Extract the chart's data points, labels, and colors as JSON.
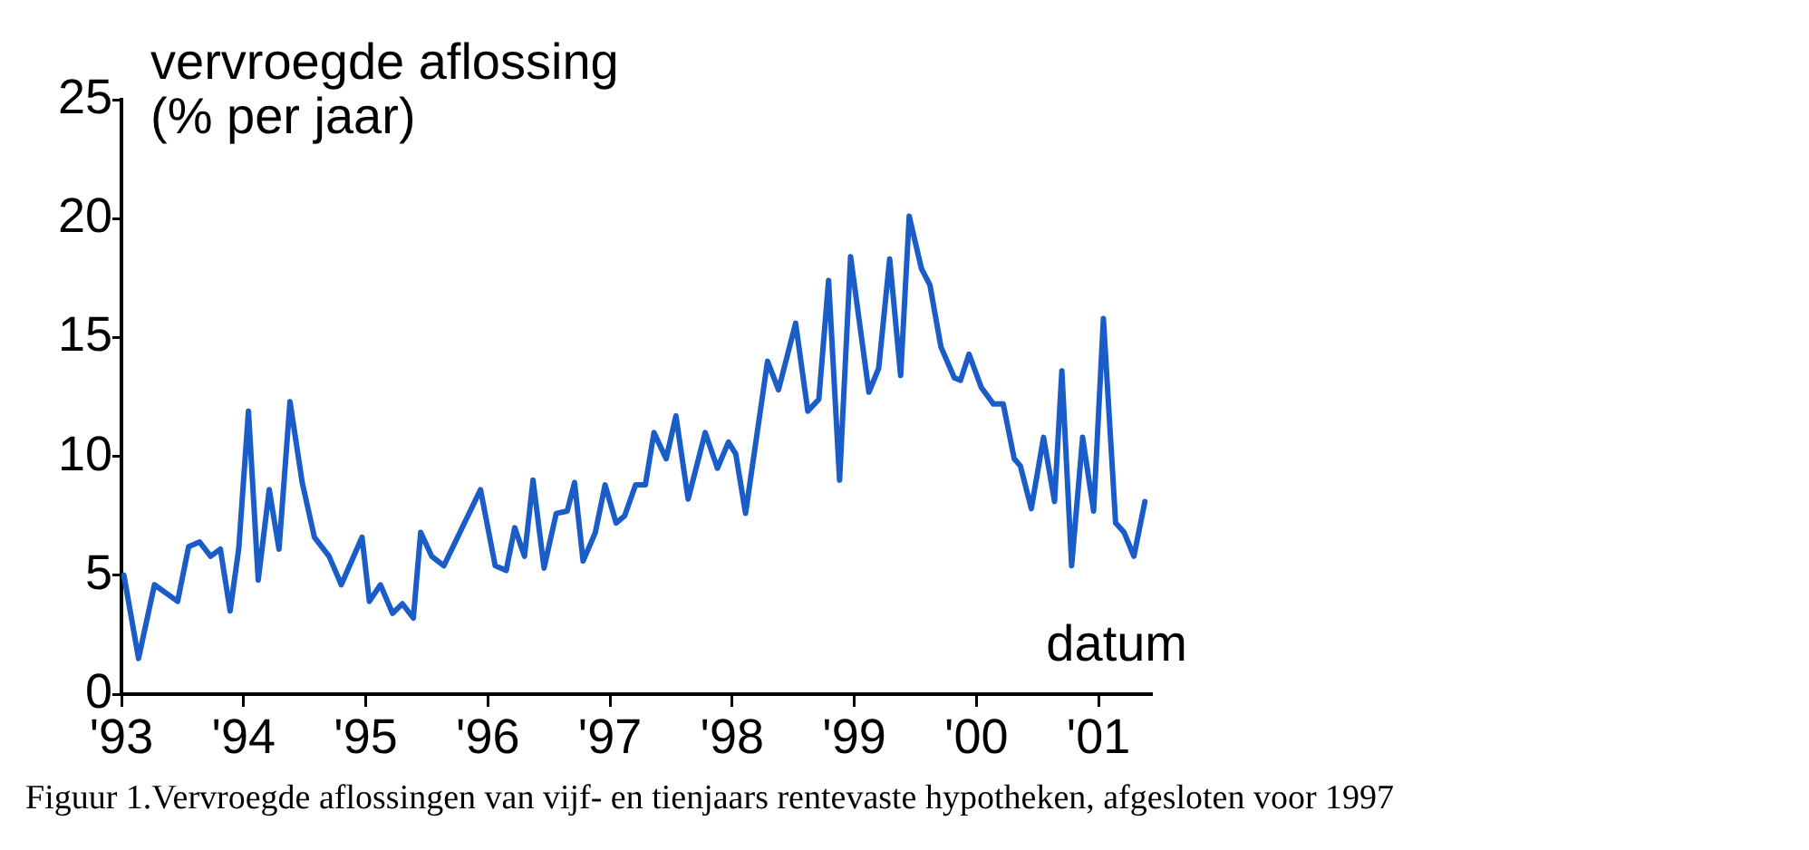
{
  "chart_data": {
    "type": "line",
    "ylabel": "vervroegde aflossing\n(% per jaar)",
    "xlabel": "datum",
    "annotations": [
      "Figuur 1.Vervroegde aflossingen van vijf- en tienjaars rentevaste hypotheken, afgesloten voor 1997"
    ],
    "xlim": [
      1993,
      2001.43
    ],
    "xticks": [
      {
        "value": 1993,
        "label": "'93"
      },
      {
        "value": 1994,
        "label": "'94"
      },
      {
        "value": 1995,
        "label": "'95"
      },
      {
        "value": 1996,
        "label": "'96"
      },
      {
        "value": 1997,
        "label": "'97"
      },
      {
        "value": 1998,
        "label": "'98"
      },
      {
        "value": 1999,
        "label": "'99"
      },
      {
        "value": 2000,
        "label": "'00"
      },
      {
        "value": 2001,
        "label": "'01"
      }
    ],
    "ylim": [
      0,
      25
    ],
    "yticks": [
      0,
      5,
      10,
      15,
      20,
      25
    ],
    "grid": false,
    "legend": false,
    "marker": "none",
    "line_style": "solid",
    "series": [
      {
        "color": "#1a5cc8",
        "x": [
          1993.02,
          1993.14,
          1993.27,
          1993.46,
          1993.55,
          1993.64,
          1993.73,
          1993.81,
          1993.89,
          1993.96,
          1994.04,
          1994.12,
          1994.21,
          1994.29,
          1994.38,
          1994.48,
          1994.58,
          1994.7,
          1994.8,
          1994.97,
          1995.03,
          1995.12,
          1995.22,
          1995.3,
          1995.39,
          1995.45,
          1995.54,
          1995.64,
          1995.94,
          1996.06,
          1996.15,
          1996.22,
          1996.3,
          1996.37,
          1996.46,
          1996.56,
          1996.65,
          1996.71,
          1996.78,
          1996.88,
          1996.96,
          1997.05,
          1997.12,
          1997.21,
          1997.29,
          1997.36,
          1997.46,
          1997.54,
          1997.64,
          1997.78,
          1997.88,
          1997.97,
          1998.03,
          1998.11,
          1998.29,
          1998.38,
          1998.52,
          1998.62,
          1998.71,
          1998.79,
          1998.88,
          1998.97,
          1999.12,
          1999.2,
          1999.29,
          1999.38,
          1999.45,
          1999.55,
          1999.62,
          1999.71,
          1999.82,
          1999.87,
          1999.94,
          2000.04,
          2000.14,
          2000.22,
          2000.31,
          2000.36,
          2000.45,
          2000.55,
          2000.64,
          2000.7,
          2000.78,
          2000.87,
          2000.96,
          2001.04,
          2001.14,
          2001.21,
          2001.29,
          2001.38
        ],
        "values": [
          5.0,
          1.5,
          4.6,
          3.9,
          6.2,
          6.4,
          5.8,
          6.1,
          3.5,
          6.1,
          11.9,
          4.8,
          8.6,
          6.1,
          12.3,
          8.9,
          6.6,
          5.8,
          4.6,
          6.6,
          3.9,
          4.6,
          3.4,
          3.8,
          3.2,
          6.8,
          5.8,
          5.4,
          8.6,
          5.4,
          5.2,
          7.0,
          5.8,
          9.0,
          5.3,
          7.6,
          7.7,
          8.9,
          5.6,
          6.8,
          8.8,
          7.2,
          7.5,
          8.8,
          8.8,
          11.0,
          9.9,
          11.7,
          8.2,
          11.0,
          9.5,
          10.6,
          10.1,
          7.6,
          14.0,
          12.8,
          15.6,
          11.9,
          12.4,
          17.4,
          9.0,
          18.4,
          12.7,
          13.7,
          18.3,
          13.4,
          20.1,
          17.9,
          17.2,
          14.6,
          13.3,
          13.2,
          14.3,
          12.9,
          12.2,
          12.2,
          9.9,
          9.6,
          7.8,
          10.8,
          8.1,
          13.6,
          5.4,
          10.8,
          7.7,
          15.8,
          7.2,
          6.8,
          5.8,
          8.1
        ]
      }
    ]
  }
}
